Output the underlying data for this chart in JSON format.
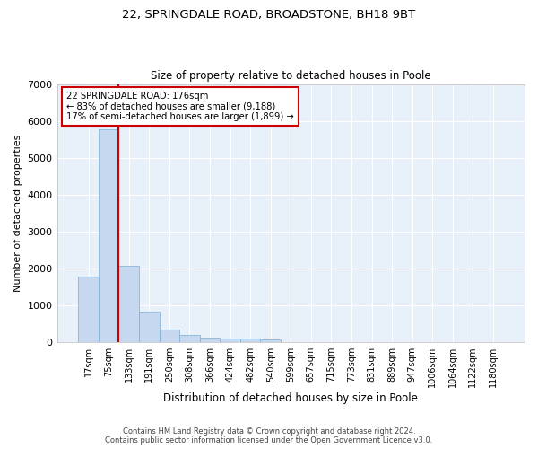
{
  "title1": "22, SPRINGDALE ROAD, BROADSTONE, BH18 9BT",
  "title2": "Size of property relative to detached houses in Poole",
  "xlabel": "Distribution of detached houses by size in Poole",
  "ylabel": "Number of detached properties",
  "bar_color": "#c5d8f0",
  "bar_edge_color": "#7aafd4",
  "background_color": "#e8f0fa",
  "grid_color": "#ffffff",
  "categories": [
    "17sqm",
    "75sqm",
    "133sqm",
    "191sqm",
    "250sqm",
    "308sqm",
    "366sqm",
    "424sqm",
    "482sqm",
    "540sqm",
    "599sqm",
    "657sqm",
    "715sqm",
    "773sqm",
    "831sqm",
    "889sqm",
    "947sqm",
    "1006sqm",
    "1064sqm",
    "1122sqm",
    "1180sqm"
  ],
  "values": [
    1780,
    5780,
    2060,
    830,
    340,
    200,
    120,
    105,
    100,
    80,
    0,
    0,
    0,
    0,
    0,
    0,
    0,
    0,
    0,
    0,
    0
  ],
  "ylim": [
    0,
    7000
  ],
  "yticks": [
    0,
    1000,
    2000,
    3000,
    4000,
    5000,
    6000,
    7000
  ],
  "annotation_text_line1": "22 SPRINGDALE ROAD: 176sqm",
  "annotation_text_line2": "← 83% of detached houses are smaller (9,188)",
  "annotation_text_line3": "17% of semi-detached houses are larger (1,899) →",
  "annotation_box_color": "#ffffff",
  "annotation_box_edge_color": "#cc0000",
  "vline_color": "#cc0000",
  "vline_x": 2.0,
  "footer1": "Contains HM Land Registry data © Crown copyright and database right 2024.",
  "footer2": "Contains public sector information licensed under the Open Government Licence v3.0.",
  "figwidth": 6.0,
  "figheight": 5.0,
  "dpi": 100
}
